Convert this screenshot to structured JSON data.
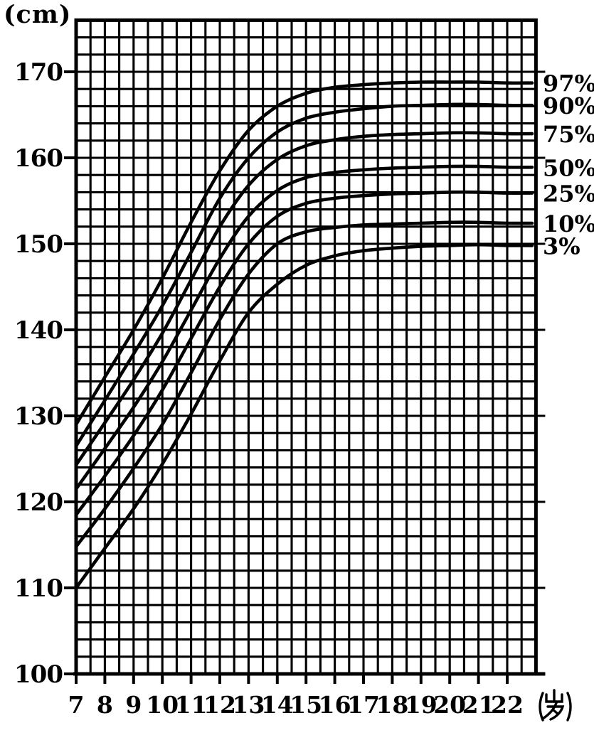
{
  "chart_data": {
    "type": "line",
    "ylabel": "(cm)",
    "xlabel": "(岁)",
    "x": [
      7,
      8,
      9,
      10,
      11,
      12,
      13,
      14,
      15,
      16,
      17,
      18,
      19,
      20,
      21,
      22
    ],
    "x_tick_labels": [
      "7",
      "8",
      "9",
      "10",
      "11",
      "12",
      "13",
      "14",
      "15",
      "16",
      "17",
      "18",
      "19",
      "20",
      "21",
      "22"
    ],
    "y_ticks": [
      100,
      110,
      120,
      130,
      140,
      150,
      160,
      170
    ],
    "y_tick_labels": [
      "100",
      "110",
      "120",
      "130",
      "140",
      "150",
      "160",
      "170"
    ],
    "xlim": [
      7,
      23
    ],
    "ylim": [
      98,
      176
    ],
    "grid": {
      "on": true,
      "x_step_years": 0.5,
      "y_step_cm": 2
    },
    "legend_position": "right-of-plot",
    "series": [
      {
        "name": "97%",
        "values": [
          129,
          134.5,
          140,
          146,
          152.5,
          158.5,
          163.2,
          166,
          167.5,
          168.2,
          168.5,
          168.7,
          168.8,
          168.8,
          168.8,
          168.7
        ]
      },
      {
        "name": "90%",
        "values": [
          126.5,
          131.8,
          137.2,
          142.8,
          149,
          155.3,
          160,
          163,
          164.6,
          165.3,
          165.7,
          166,
          166.1,
          166.2,
          166.2,
          166.1
        ]
      },
      {
        "name": "75%",
        "values": [
          124.3,
          129.2,
          134.2,
          139.6,
          145.8,
          152,
          156.8,
          159.8,
          161.4,
          162.1,
          162.5,
          162.7,
          162.8,
          162.9,
          162.9,
          162.8
        ]
      },
      {
        "name": "50%",
        "values": [
          121.5,
          126.2,
          131,
          136.3,
          142.3,
          148.3,
          153.2,
          156.2,
          157.7,
          158.3,
          158.6,
          158.8,
          158.9,
          159,
          159,
          158.9
        ]
      },
      {
        "name": "25%",
        "values": [
          118.5,
          123,
          127.7,
          133,
          139,
          145,
          150,
          153.2,
          154.7,
          155.3,
          155.6,
          155.8,
          155.9,
          156,
          156,
          155.9
        ]
      },
      {
        "name": "10%",
        "values": [
          114.8,
          119.2,
          123.9,
          129,
          135,
          141.2,
          146.5,
          150,
          151.4,
          151.9,
          152.2,
          152.3,
          152.4,
          152.5,
          152.5,
          152.4
        ]
      },
      {
        "name": "3%",
        "values": [
          110,
          114.6,
          119.2,
          124.4,
          130.2,
          136.4,
          142,
          145.3,
          147.5,
          148.6,
          149.2,
          149.5,
          149.7,
          149.8,
          149.9,
          149.8
        ]
      }
    ]
  },
  "colors": {
    "ink": "#000000",
    "paper": "#ffffff"
  }
}
